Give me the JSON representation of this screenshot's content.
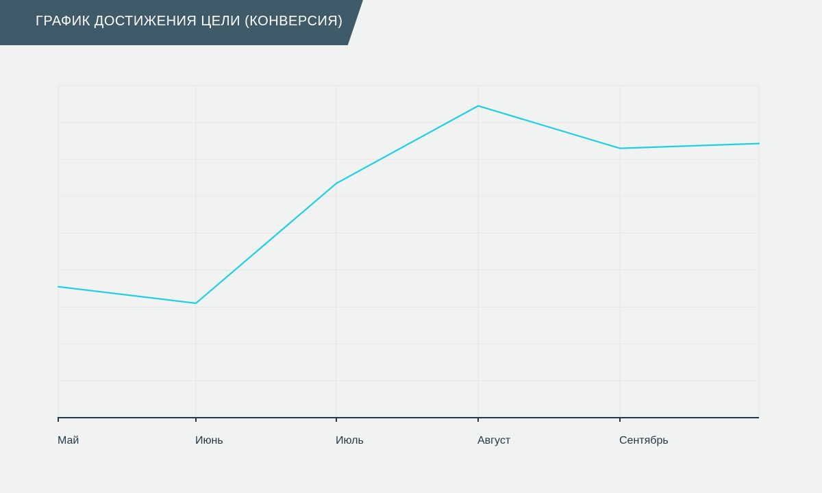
{
  "header": {
    "title": "ГРАФИК ДОСТИЖЕНИЯ ЦЕЛИ (КОНВЕРСИЯ)"
  },
  "colors": {
    "banner": "#3f5a68",
    "series": "#1ecfe3",
    "axis": "#233a48",
    "background": "#f1f3f2",
    "grid": "#e3e6e6"
  },
  "chart_data": {
    "type": "line",
    "title": "ГРАФИК ДОСТИЖЕНИЯ ЦЕЛИ (КОНВЕРСИЯ)",
    "xlabel": "",
    "ylabel": "",
    "x": [
      "Май",
      "Июнь",
      "Июль",
      "Август",
      "Сентябрь",
      ""
    ],
    "series": [
      {
        "values": [
          3.55,
          3.1,
          6.35,
          8.45,
          7.3,
          7.43
        ]
      }
    ],
    "ylim": [
      0,
      9
    ],
    "grid": true,
    "legend": "none"
  }
}
